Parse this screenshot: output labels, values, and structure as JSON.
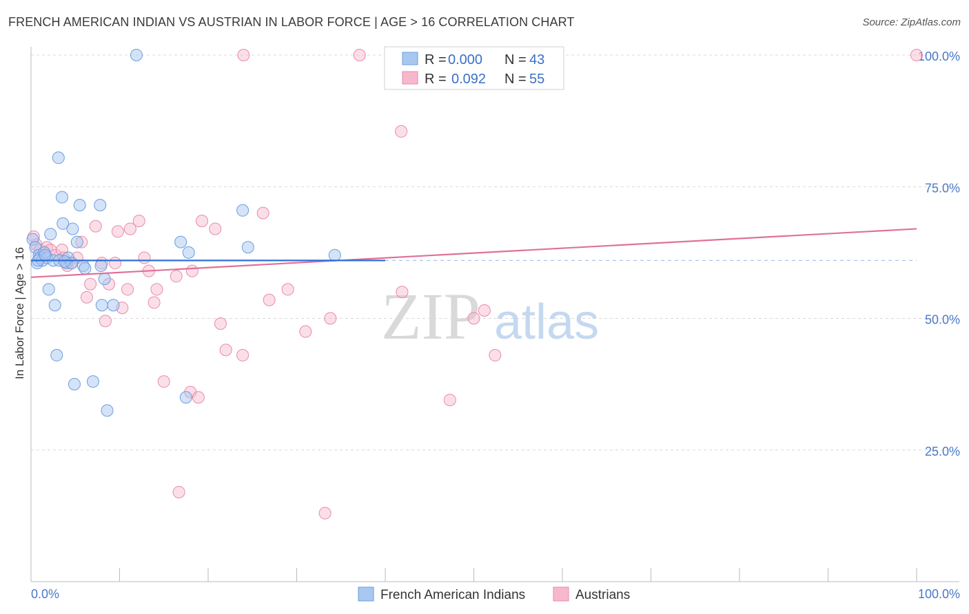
{
  "header": {
    "title": "FRENCH AMERICAN INDIAN VS AUSTRIAN IN LABOR FORCE | AGE > 16 CORRELATION CHART",
    "source": "Source: ZipAtlas.com"
  },
  "watermark": {
    "part1": "ZIP",
    "part2": "atlas"
  },
  "colors": {
    "blue_fill": "#a9c8f0",
    "blue_stroke": "#6a9de0",
    "blue_line": "#2f6fd6",
    "pink_fill": "#f6b8cc",
    "pink_stroke": "#e98aa8",
    "pink_line": "#e0709a",
    "grid": "#d8d8d8",
    "tick_label": "#4a78c8"
  },
  "legend": {
    "rows": [
      {
        "r_label": "R = ",
        "r_value": "0.000",
        "n_label": "N = ",
        "n_value": "43"
      },
      {
        "r_label": "R = ",
        "r_value": "0.092",
        "n_label": "N = ",
        "n_value": "55"
      }
    ]
  },
  "chart_data": {
    "type": "scatter",
    "title": "FRENCH AMERICAN INDIAN VS AUSTRIAN IN LABOR FORCE | AGE > 16 CORRELATION CHART",
    "xlabel": "",
    "ylabel": "In Labor Force | Age > 16",
    "xlim": [
      0,
      100
    ],
    "ylim": [
      0,
      102
    ],
    "x_tick_labels": [
      "0.0%",
      "100.0%"
    ],
    "y_ticks": [
      25,
      50,
      75,
      100
    ],
    "y_tick_labels": [
      "25.0%",
      "50.0%",
      "75.0%",
      "100.0%"
    ],
    "series": [
      {
        "name": "French American Indians",
        "R": 0.0,
        "N": 43,
        "trend": {
          "x0": 0,
          "y0": 61.0,
          "x1": 40,
          "y1": 61.0
        },
        "trend_dashed_extension": {
          "x0": 40,
          "x1": 100,
          "y": 61.0
        },
        "points": [
          [
            0.2,
            65.0
          ],
          [
            0.5,
            63.5
          ],
          [
            0.7,
            60.5
          ],
          [
            0.9,
            62.0
          ],
          [
            1.0,
            61.5
          ],
          [
            1.3,
            61.0
          ],
          [
            1.5,
            62.5
          ],
          [
            1.8,
            61.5
          ],
          [
            2.0,
            55.5
          ],
          [
            2.2,
            66.0
          ],
          [
            2.5,
            61.0
          ],
          [
            2.7,
            52.5
          ],
          [
            2.9,
            43.0
          ],
          [
            3.2,
            61.0
          ],
          [
            3.5,
            73.0
          ],
          [
            3.6,
            68.0
          ],
          [
            3.1,
            80.5
          ],
          [
            4.0,
            60.5
          ],
          [
            4.2,
            61.5
          ],
          [
            4.6,
            60.5
          ],
          [
            4.7,
            67.0
          ],
          [
            4.9,
            37.5
          ],
          [
            5.2,
            64.5
          ],
          [
            5.5,
            71.5
          ],
          [
            5.9,
            60.0
          ],
          [
            6.1,
            59.5
          ],
          [
            7.0,
            38.0
          ],
          [
            7.8,
            71.5
          ],
          [
            7.9,
            60.0
          ],
          [
            8.0,
            52.5
          ],
          [
            8.3,
            57.5
          ],
          [
            8.6,
            32.5
          ],
          [
            9.3,
            52.5
          ],
          [
            11.9,
            100.0
          ],
          [
            16.9,
            64.5
          ],
          [
            17.5,
            35.0
          ],
          [
            17.8,
            62.5
          ],
          [
            23.9,
            70.5
          ],
          [
            24.5,
            63.5
          ],
          [
            34.3,
            62.0
          ],
          [
            0.8,
            61.0
          ],
          [
            1.6,
            62.0
          ],
          [
            3.8,
            60.8
          ]
        ]
      },
      {
        "name": "Austrians",
        "R": 0.092,
        "N": 55,
        "trend": {
          "x0": 0,
          "y0": 57.8,
          "x1": 100,
          "y1": 67.0
        },
        "points": [
          [
            0.3,
            65.5
          ],
          [
            0.6,
            64.0
          ],
          [
            1.0,
            63.0
          ],
          [
            1.5,
            62.5
          ],
          [
            1.8,
            63.5
          ],
          [
            2.2,
            63.0
          ],
          [
            2.8,
            62.0
          ],
          [
            3.5,
            63.0
          ],
          [
            3.7,
            61.5
          ],
          [
            4.1,
            60.0
          ],
          [
            4.5,
            60.5
          ],
          [
            5.2,
            61.5
          ],
          [
            5.7,
            64.5
          ],
          [
            6.3,
            54.0
          ],
          [
            6.7,
            56.5
          ],
          [
            7.3,
            67.5
          ],
          [
            8.0,
            60.5
          ],
          [
            8.4,
            49.5
          ],
          [
            8.8,
            56.5
          ],
          [
            9.5,
            60.5
          ],
          [
            9.8,
            66.5
          ],
          [
            10.3,
            52.0
          ],
          [
            10.9,
            55.5
          ],
          [
            11.2,
            67.0
          ],
          [
            12.2,
            68.5
          ],
          [
            12.8,
            61.5
          ],
          [
            13.3,
            59.0
          ],
          [
            13.9,
            53.0
          ],
          [
            14.2,
            55.5
          ],
          [
            15.0,
            38.0
          ],
          [
            16.4,
            58.0
          ],
          [
            16.7,
            17.0
          ],
          [
            18.0,
            36.0
          ],
          [
            18.2,
            59.0
          ],
          [
            18.9,
            35.0
          ],
          [
            19.3,
            68.5
          ],
          [
            20.8,
            67.0
          ],
          [
            21.4,
            49.0
          ],
          [
            22.0,
            44.0
          ],
          [
            23.9,
            43.0
          ],
          [
            26.9,
            53.5
          ],
          [
            26.2,
            70.0
          ],
          [
            29.0,
            55.5
          ],
          [
            31.0,
            47.5
          ],
          [
            33.2,
            13.0
          ],
          [
            33.8,
            50.0
          ],
          [
            37.1,
            100.0
          ],
          [
            41.8,
            85.5
          ],
          [
            41.9,
            55.0
          ],
          [
            47.3,
            34.5
          ],
          [
            50.0,
            50.0
          ],
          [
            51.2,
            51.5
          ],
          [
            52.4,
            43.0
          ],
          [
            24.0,
            100.0
          ],
          [
            100.0,
            100.0
          ]
        ]
      }
    ]
  },
  "bottom_legend": {
    "items": [
      "French American Indians",
      "Austrians"
    ]
  }
}
